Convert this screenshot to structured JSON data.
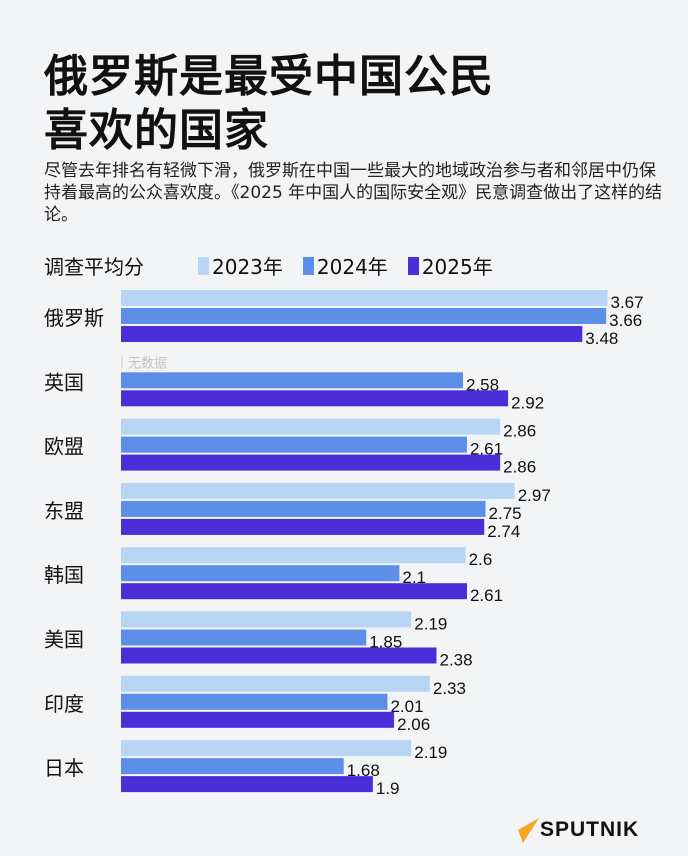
{
  "header": {
    "title_line1": "俄罗斯是最受中国公民",
    "title_line2": "喜欢的国家",
    "subtitle": "尽管去年排名有轻微下滑，俄罗斯在中国一些最大的地域政治参与者和邻居中仍保持着最高的公众喜欢度。《2025 年中国人的国际安全观》民意调查做出了这样的结论。"
  },
  "chart_data": {
    "type": "bar",
    "orientation": "horizontal",
    "ylabel": "调查平均分",
    "categories": [
      "俄罗斯",
      "英国",
      "欧盟",
      "东盟",
      "韩国",
      "美国",
      "印度",
      "日本"
    ],
    "series": [
      {
        "name": "2023年",
        "color": "#b8d5f5",
        "values": [
          3.67,
          null,
          2.86,
          2.97,
          2.6,
          2.19,
          2.33,
          2.19
        ]
      },
      {
        "name": "2024年",
        "color": "#5d8ee8",
        "values": [
          3.66,
          2.58,
          2.61,
          2.75,
          2.1,
          1.85,
          2.01,
          1.68
        ]
      },
      {
        "name": "2025年",
        "color": "#4a2ed8",
        "values": [
          3.48,
          2.92,
          2.86,
          2.74,
          2.61,
          2.38,
          2.06,
          1.9
        ]
      }
    ],
    "value_labels": [
      [
        "3.67",
        "3.66",
        "3.48"
      ],
      [
        "无数据",
        "2.58",
        "2.92"
      ],
      [
        "2.86",
        "2.61",
        "2.86"
      ],
      [
        "2.97",
        "2.75",
        "2.74"
      ],
      [
        "2.6",
        "2.1",
        "2.61"
      ],
      [
        "2.19",
        "1.85",
        "2.38"
      ],
      [
        "2.33",
        "2.01",
        "2.06"
      ],
      [
        "2.19",
        "1.68",
        "1.9"
      ]
    ],
    "no_data_label": "无数据",
    "xlim": [
      0,
      4.3
    ],
    "grid": false,
    "legend_position": "top"
  },
  "footer": {
    "brand": "SPUTNIK",
    "brand_color": "#f5a623"
  }
}
